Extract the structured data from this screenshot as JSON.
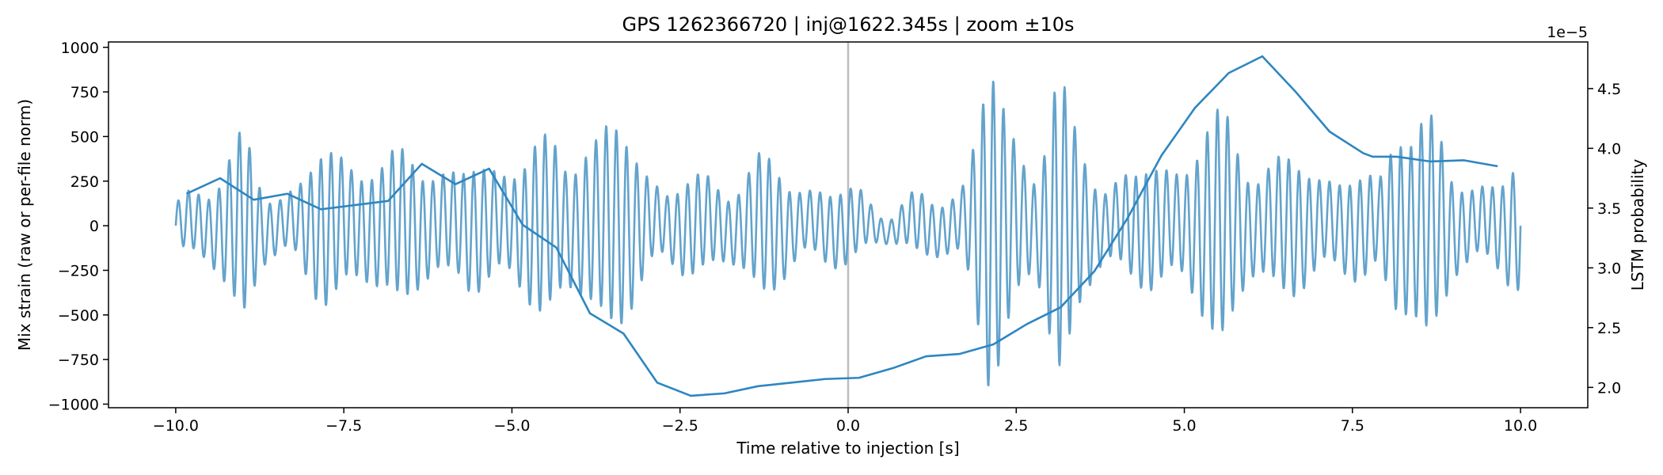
{
  "chart_data": {
    "type": "line",
    "title": "GPS 1262366720 | inj@1622.345s | zoom ±10s",
    "xlabel": "Time relative to injection [s]",
    "ylabel_left": "Mix strain (raw or per-file norm)",
    "ylabel_right": "LSTM probability",
    "right_axis_offset_label": "1e−5",
    "xlim": [
      -11.0,
      11.0
    ],
    "ylim_left": [
      -1020,
      1030
    ],
    "ylim_right": [
      1.83,
      4.89
    ],
    "x_ticks": [
      -10.0,
      -7.5,
      -5.0,
      -2.5,
      0.0,
      2.5,
      5.0,
      7.5,
      10.0
    ],
    "x_tick_labels": [
      "−10.0",
      "−7.5",
      "−5.0",
      "−2.5",
      "0.0",
      "2.5",
      "5.0",
      "7.5",
      "10.0"
    ],
    "y_left_ticks": [
      1000,
      750,
      500,
      250,
      0,
      -250,
      -500,
      -750,
      -1000
    ],
    "y_left_tick_labels": [
      "1000",
      "750",
      "500",
      "250",
      "0",
      "−250",
      "−500",
      "−750",
      "−1000"
    ],
    "y_right_ticks": [
      4.5,
      4.0,
      3.5,
      3.0,
      2.5,
      2.0
    ],
    "y_right_tick_labels": [
      "4.5",
      "4.0",
      "3.5",
      "3.0",
      "2.5",
      "2.0"
    ],
    "injection_line_x": 0.0,
    "strain_series": {
      "color": "#5b9ec9",
      "x_start": -10.0,
      "x_end": 10.0,
      "oscillation_hz": 6.6,
      "envelope": [
        [
          -10.0,
          120
        ],
        [
          -9.5,
          320
        ],
        [
          -9.0,
          520
        ],
        [
          -8.7,
          230
        ],
        [
          -8.2,
          260
        ],
        [
          -7.8,
          430
        ],
        [
          -7.3,
          500
        ],
        [
          -6.9,
          360
        ],
        [
          -6.5,
          450
        ],
        [
          -6.2,
          470
        ],
        [
          -5.8,
          300
        ],
        [
          -5.4,
          380
        ],
        [
          -5.0,
          450
        ],
        [
          -4.6,
          500
        ],
        [
          -4.2,
          420
        ],
        [
          -3.9,
          700
        ],
        [
          -3.5,
          560
        ],
        [
          -3.1,
          450
        ],
        [
          -2.7,
          260
        ],
        [
          -2.2,
          270
        ],
        [
          -1.8,
          300
        ],
        [
          -1.3,
          400
        ],
        [
          -0.9,
          300
        ],
        [
          -0.5,
          270
        ],
        [
          -0.2,
          210
        ],
        [
          0.2,
          200
        ],
        [
          0.6,
          100
        ],
        [
          1.0,
          160
        ],
        [
          1.3,
          170
        ],
        [
          1.7,
          300
        ],
        [
          2.1,
          900
        ],
        [
          2.4,
          640
        ],
        [
          2.8,
          430
        ],
        [
          3.1,
          900
        ],
        [
          3.4,
          510
        ],
        [
          3.8,
          330
        ],
        [
          4.3,
          300
        ],
        [
          4.7,
          400
        ],
        [
          5.2,
          540
        ],
        [
          5.6,
          650
        ],
        [
          6.0,
          450
        ],
        [
          6.4,
          400
        ],
        [
          6.8,
          350
        ],
        [
          7.2,
          380
        ],
        [
          7.6,
          290
        ],
        [
          7.9,
          240
        ],
        [
          8.2,
          850
        ],
        [
          8.6,
          700
        ],
        [
          9.0,
          280
        ],
        [
          9.4,
          320
        ],
        [
          9.7,
          280
        ],
        [
          10.0,
          360
        ]
      ]
    },
    "probability_series": {
      "color": "#2e86c1",
      "x": [
        -9.84,
        -9.34,
        -8.84,
        -8.34,
        -7.84,
        -6.84,
        -6.34,
        -5.84,
        -5.34,
        -4.84,
        -4.34,
        -3.84,
        -3.34,
        -2.84,
        -2.34,
        -1.84,
        -1.34,
        -0.84,
        -0.34,
        0.16,
        0.66,
        1.16,
        1.66,
        2.16,
        2.66,
        3.16,
        3.66,
        4.16,
        4.66,
        5.16,
        5.66,
        6.16,
        6.66,
        7.16,
        7.66,
        7.8,
        8.16,
        8.66,
        9.16,
        9.66
      ],
      "y": [
        3.62,
        3.75,
        3.57,
        3.62,
        3.49,
        3.56,
        3.87,
        3.7,
        3.83,
        3.36,
        3.17,
        2.62,
        2.45,
        2.04,
        1.93,
        1.95,
        2.01,
        2.04,
        2.07,
        2.08,
        2.16,
        2.26,
        2.28,
        2.36,
        2.53,
        2.67,
        2.97,
        3.42,
        3.94,
        4.34,
        4.63,
        4.77,
        4.47,
        4.14,
        3.96,
        3.93,
        3.93,
        3.89,
        3.9,
        3.85
      ]
    }
  }
}
